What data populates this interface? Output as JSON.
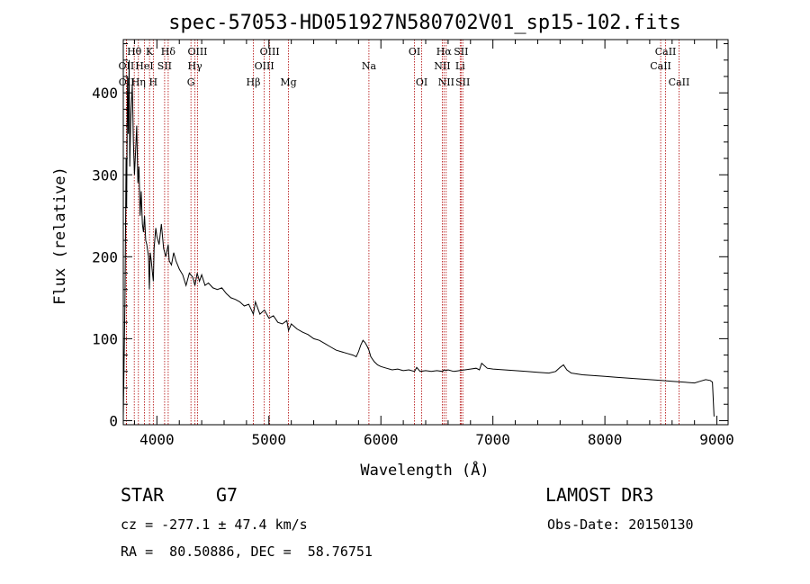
{
  "chart_data": {
    "type": "line",
    "title": "spec-57053-HD051927N580702V01_sp15-102.fits",
    "xlabel": "Wavelength (Å)",
    "ylabel": "Flux (relative)",
    "xlim": [
      3700,
      9100
    ],
    "ylim": [
      -5,
      465
    ],
    "xticks": [
      4000,
      5000,
      6000,
      7000,
      8000,
      9000
    ],
    "yticks": [
      0,
      100,
      200,
      300,
      400
    ],
    "x_minor_step": 200,
    "y_minor_step": 20,
    "grid": false,
    "series": [
      {
        "name": "spectrum",
        "x": [
          3700,
          3715,
          3725,
          3730,
          3738,
          3745,
          3752,
          3758,
          3765,
          3770,
          3780,
          3790,
          3800,
          3810,
          3820,
          3830,
          3840,
          3850,
          3860,
          3870,
          3880,
          3890,
          3900,
          3910,
          3925,
          3933,
          3940,
          3950,
          3960,
          3968,
          3975,
          3990,
          4000,
          4020,
          4040,
          4060,
          4080,
          4101,
          4110,
          4130,
          4150,
          4170,
          4200,
          4230,
          4260,
          4290,
          4320,
          4340,
          4360,
          4380,
          4400,
          4430,
          4460,
          4500,
          4540,
          4580,
          4620,
          4660,
          4700,
          4740,
          4780,
          4820,
          4861,
          4880,
          4920,
          4960,
          5000,
          5040,
          5080,
          5120,
          5160,
          5175,
          5200,
          5250,
          5300,
          5350,
          5400,
          5450,
          5500,
          5550,
          5600,
          5650,
          5700,
          5750,
          5780,
          5800,
          5820,
          5840,
          5860,
          5880,
          5893,
          5910,
          5940,
          5970,
          6000,
          6050,
          6100,
          6150,
          6200,
          6250,
          6300,
          6320,
          6350,
          6400,
          6450,
          6500,
          6550,
          6563,
          6580,
          6600,
          6650,
          6700,
          6750,
          6800,
          6850,
          6880,
          6900,
          6950,
          7000,
          7100,
          7200,
          7300,
          7400,
          7500,
          7560,
          7600,
          7630,
          7660,
          7700,
          7800,
          7900,
          8000,
          8100,
          8200,
          8300,
          8400,
          8500,
          8600,
          8700,
          8800,
          8850,
          8900,
          8940,
          8960,
          8975
        ],
        "y": [
          5,
          150,
          320,
          260,
          420,
          350,
          440,
          310,
          360,
          380,
          410,
          340,
          300,
          330,
          360,
          290,
          310,
          250,
          280,
          240,
          230,
          250,
          220,
          215,
          200,
          160,
          205,
          195,
          180,
          170,
          210,
          235,
          225,
          215,
          240,
          210,
          200,
          215,
          195,
          190,
          205,
          195,
          185,
          178,
          165,
          180,
          175,
          165,
          180,
          170,
          178,
          165,
          168,
          162,
          160,
          162,
          155,
          150,
          148,
          145,
          140,
          142,
          130,
          145,
          130,
          135,
          125,
          128,
          120,
          118,
          122,
          110,
          118,
          112,
          108,
          105,
          100,
          98,
          94,
          90,
          86,
          84,
          82,
          80,
          78,
          84,
          92,
          98,
          95,
          90,
          86,
          78,
          72,
          68,
          66,
          64,
          62,
          63,
          61,
          62,
          60,
          65,
          60,
          61,
          60,
          61,
          60,
          62,
          61,
          62,
          60,
          61,
          62,
          63,
          64,
          62,
          70,
          64,
          63,
          62,
          61,
          60,
          59,
          58,
          60,
          65,
          68,
          62,
          58,
          56,
          55,
          54,
          53,
          52,
          51,
          50,
          49,
          48,
          47,
          46,
          48,
          50,
          49,
          47,
          5
        ]
      }
    ],
    "lines": [
      {
        "label": "OII",
        "wavelength": 3727,
        "row": 2
      },
      {
        "label": "OII",
        "wavelength": 3729,
        "row": 3
      },
      {
        "label": "Hθ",
        "wavelength": 3798,
        "row": 1
      },
      {
        "label": "Hη",
        "wavelength": 3835,
        "row": 3
      },
      {
        "label": "HeI",
        "wavelength": 3889,
        "row": 2
      },
      {
        "label": "K",
        "wavelength": 3934,
        "row": 1
      },
      {
        "label": "H",
        "wavelength": 3968,
        "row": 3
      },
      {
        "label": "SII",
        "wavelength": 4069,
        "row": 2
      },
      {
        "label": "Hδ",
        "wavelength": 4101,
        "row": 1
      },
      {
        "label": "G",
        "wavelength": 4304,
        "row": 3
      },
      {
        "label": "Hγ",
        "wavelength": 4340,
        "row": 2
      },
      {
        "label": "OIII",
        "wavelength": 4363,
        "row": 1
      },
      {
        "label": "Hβ",
        "wavelength": 4861,
        "row": 3
      },
      {
        "label": "OIII",
        "wavelength": 4959,
        "row": 2
      },
      {
        "label": "OIII",
        "wavelength": 5007,
        "row": 1
      },
      {
        "label": "Mg",
        "wavelength": 5175,
        "row": 3
      },
      {
        "label": "Na",
        "wavelength": 5893,
        "row": 2
      },
      {
        "label": "OI",
        "wavelength": 6300,
        "row": 1
      },
      {
        "label": "OI",
        "wavelength": 6364,
        "row": 3
      },
      {
        "label": "NII",
        "wavelength": 6548,
        "row": 2
      },
      {
        "label": "Hα",
        "wavelength": 6563,
        "row": 1
      },
      {
        "label": "NII",
        "wavelength": 6583,
        "row": 3
      },
      {
        "label": "SII",
        "wavelength": 6716,
        "row": 1
      },
      {
        "label": "Li",
        "wavelength": 6708,
        "row": 2
      },
      {
        "label": "SII",
        "wavelength": 6731,
        "row": 3
      },
      {
        "label": "CaII",
        "wavelength": 8498,
        "row": 2
      },
      {
        "label": "CaII",
        "wavelength": 8542,
        "row": 1
      },
      {
        "label": "CaII",
        "wavelength": 8662,
        "row": 3
      }
    ]
  },
  "info": {
    "object_class": "STAR",
    "subclass": "G7",
    "survey": "LAMOST DR3",
    "redshift": "cz = -277.1 ± 47.4 km/s",
    "obs_date": "Obs-Date: 20150130",
    "coords": "RA =  80.50886, DEC =  58.76751"
  },
  "colors": {
    "line_marker": "#b00000",
    "spectrum": "#000000",
    "axis": "#000000"
  }
}
